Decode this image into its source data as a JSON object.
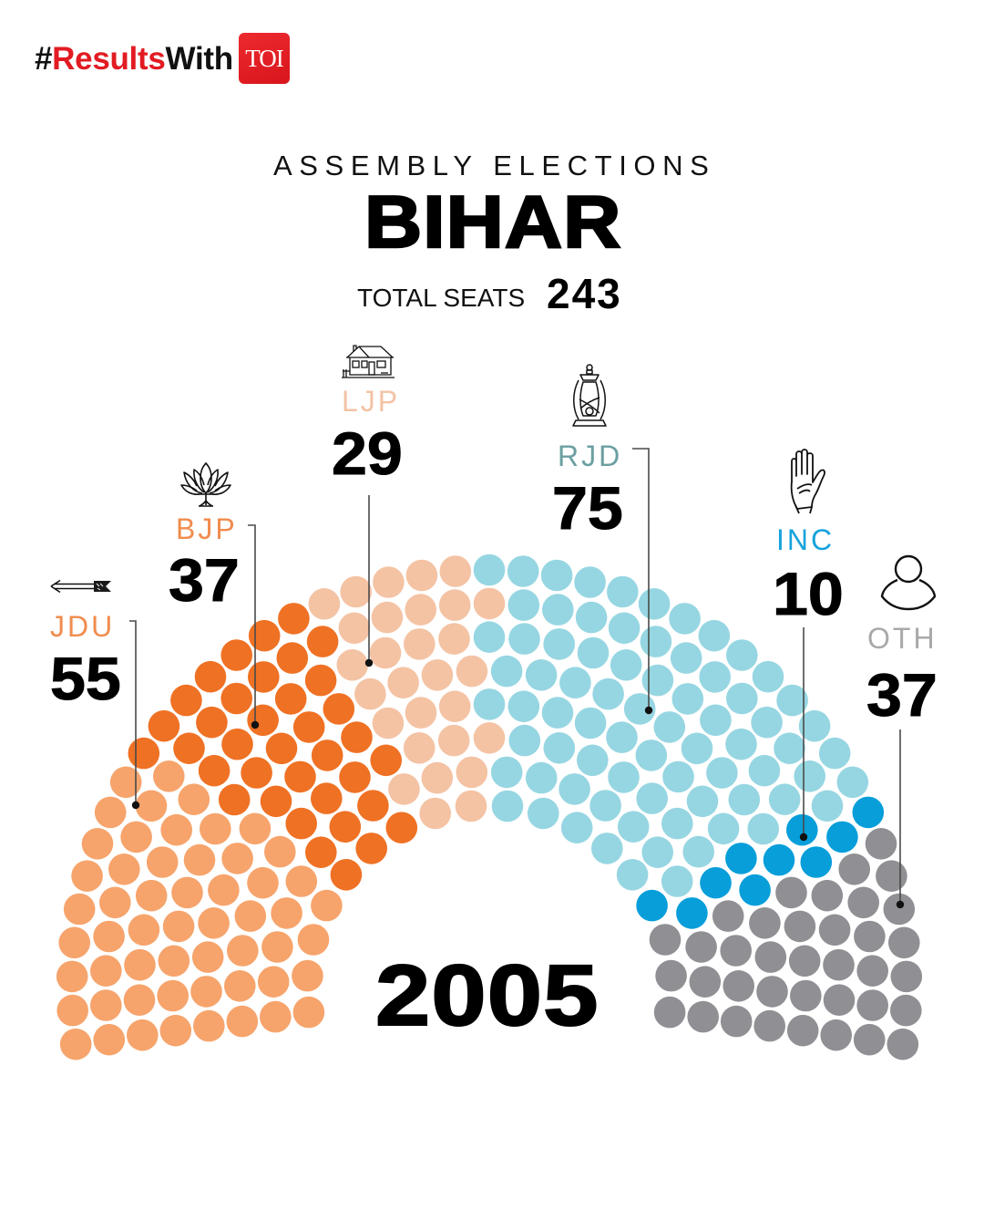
{
  "header": {
    "hash": "#",
    "results": "Results",
    "with": "With",
    "logo": "TOI",
    "brand_color": "#E21B23"
  },
  "title": {
    "kicker": "ASSEMBLY ELECTIONS",
    "state": "BIHAR",
    "total_label": "TOTAL SEATS",
    "total_value": "243"
  },
  "year": "2005",
  "parties": [
    {
      "id": "jdu",
      "label": "JDU",
      "seats": "55",
      "icon": "arrow-icon",
      "dot_color": "#F6A46C",
      "label_color": "#F08C4E"
    },
    {
      "id": "bjp",
      "label": "BJP",
      "seats": "37",
      "icon": "lotus-icon",
      "dot_color": "#EF7124",
      "label_color": "#F08C4E"
    },
    {
      "id": "ljp",
      "label": "LJP",
      "seats": "29",
      "icon": "house-icon",
      "dot_color": "#F4C3A4",
      "label_color": "#F3C3A5"
    },
    {
      "id": "rjd",
      "label": "RJD",
      "seats": "75",
      "icon": "lantern-icon",
      "dot_color": "#96D6E2",
      "label_color": "#6C9FA2"
    },
    {
      "id": "inc",
      "label": "INC",
      "seats": "10",
      "icon": "hand-icon",
      "dot_color": "#079EDA",
      "label_color": "#17A3DC"
    },
    {
      "id": "oth",
      "label": "OTH",
      "seats": "37",
      "icon": "person-icon",
      "dot_color": "#908F94",
      "label_color": "#A9A9AB"
    }
  ],
  "chart_data": {
    "type": "pie",
    "variant": "parliament-hemicycle",
    "title": "ASSEMBLY ELECTIONS BIHAR",
    "subtitle": "TOTAL SEATS 243",
    "annotation": "2005",
    "categories": [
      "JDU",
      "BJP",
      "LJP",
      "RJD",
      "INC",
      "OTH"
    ],
    "values": [
      55,
      37,
      29,
      75,
      10,
      37
    ],
    "total": 243,
    "colors": [
      "#F6A46C",
      "#EF7124",
      "#F4C3A4",
      "#96D6E2",
      "#079EDA",
      "#908F94"
    ],
    "rows": 8,
    "legend_position": "labels around arc with leader lines"
  }
}
